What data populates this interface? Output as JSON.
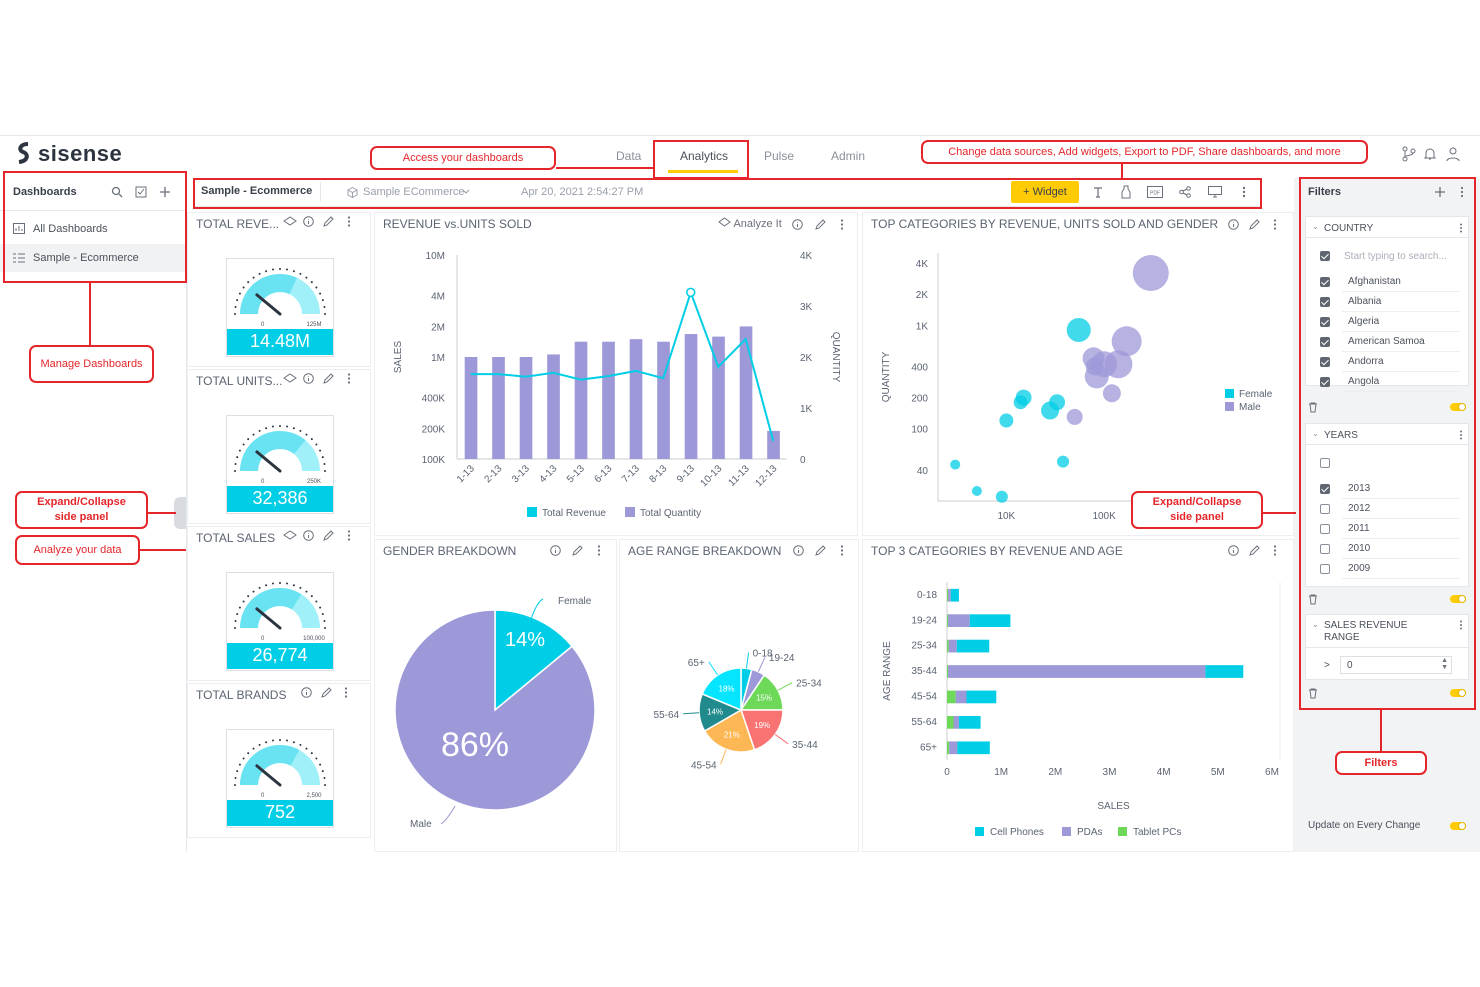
{
  "brand": {
    "name": "sisense",
    "accent": "#ffcb05",
    "kpi_color": "#00cee6",
    "annotation_color": "#e4262b"
  },
  "nav": {
    "tabs": [
      "Data",
      "Analytics",
      "Pulse",
      "Admin"
    ],
    "active": "Analytics"
  },
  "sidebar": {
    "title": "Dashboards",
    "items": [
      {
        "label": "All Dashboards",
        "icon": "dashboard-grid-icon"
      },
      {
        "label": "Sample - Ecommerce",
        "icon": "dashboard-list-icon",
        "selected": true
      }
    ]
  },
  "toolbar": {
    "dashboard_name": "Sample - Ecommerce",
    "datasource": "Sample ECommerce",
    "timestamp": "Apr 20, 2021 2:54:27 PM",
    "widget_button": "+ Widget"
  },
  "kpis": [
    {
      "title": "TOTAL REVE...",
      "value": "14.48M",
      "max_label": "125M",
      "min_label": "0",
      "level": 0.64
    },
    {
      "title": "TOTAL UNITS...",
      "value": "32,386",
      "max_label": "250K",
      "min_label": "0",
      "level": 0.72
    },
    {
      "title": "TOTAL SALES",
      "value": "26,774",
      "max_label": "100,000",
      "min_label": "0",
      "level": 0.68
    },
    {
      "title": "TOTAL BRANDS",
      "value": "752",
      "max_label": "2,500",
      "min_label": "0",
      "level": 0.66
    }
  ],
  "widgets": {
    "revenue_units": {
      "title": "REVENUE vs.UNITS SOLD",
      "analyze": "Analyze It"
    },
    "top_categories": {
      "title": "TOP CATEGORIES BY REVENUE, UNITS SOLD AND GENDER"
    },
    "gender": {
      "title": "GENDER BREAKDOWN"
    },
    "age": {
      "title": "AGE RANGE BREAKDOWN"
    },
    "top3": {
      "title": "TOP 3 CATEGORIES BY REVENUE AND AGE"
    }
  },
  "chart_data": [
    {
      "id": "revenue_units",
      "type": "bar",
      "categories": [
        "1-13",
        "2-13",
        "3-13",
        "4-13",
        "5-13",
        "6-13",
        "7-13",
        "8-13",
        "9-13",
        "10-13",
        "11-13",
        "12-13"
      ],
      "series": [
        {
          "name": "Total Quantity",
          "kind": "bar",
          "axis": "right",
          "color": "#9d98d8",
          "values": [
            2000,
            2000,
            2000,
            2050,
            2300,
            2300,
            2350,
            2300,
            2450,
            2400,
            2600,
            550
          ]
        },
        {
          "name": "Total Revenue",
          "kind": "line",
          "axis": "left",
          "color": "#00cee6",
          "values": [
            680000,
            680000,
            640000,
            700000,
            600000,
            650000,
            730000,
            620000,
            4300000,
            800000,
            1500000,
            150000
          ]
        }
      ],
      "ylabel": "SALES",
      "y2label": "QUANTITY",
      "y_ticks": [
        "10M",
        "4M",
        "2M",
        "1M",
        "400K",
        "200K",
        "100K"
      ],
      "y2_ticks": [
        "4K",
        "3K",
        "2K",
        "1K",
        "0"
      ],
      "ylim": [
        100000,
        10000000
      ],
      "y2lim": [
        0,
        4000
      ],
      "yscale": "log",
      "legend": "bottom"
    },
    {
      "id": "top_categories",
      "type": "scatter",
      "xlabel": "",
      "ylabel": "QUANTITY",
      "x_ticks": [
        "10K",
        "100K"
      ],
      "y_ticks": [
        "4K",
        "2K",
        "1K",
        "400",
        "200",
        "100",
        "40"
      ],
      "xscale": "log",
      "yscale": "log",
      "series": [
        {
          "name": "Female",
          "color": "#00cee6",
          "points": [
            [
              3000,
              45
            ],
            [
              5000,
              25
            ],
            [
              9000,
              22
            ],
            [
              10000,
              120
            ],
            [
              14000,
              180
            ],
            [
              15000,
              200
            ],
            [
              28000,
              150
            ],
            [
              33000,
              180
            ],
            [
              38000,
              48
            ],
            [
              55000,
              900
            ]
          ]
        },
        {
          "name": "Male",
          "color": "#9d98d8",
          "points": [
            [
              50000,
              130
            ],
            [
              78000,
              480
            ],
            [
              80000,
              400
            ],
            [
              84000,
              320
            ],
            [
              100000,
              420
            ],
            [
              140000,
              420
            ],
            [
              120000,
              220
            ],
            [
              170000,
              700
            ],
            [
              300000,
              3200
            ]
          ]
        }
      ],
      "legend": "right"
    },
    {
      "id": "gender",
      "type": "pie",
      "slices": [
        {
          "label": "Female",
          "value": 14,
          "text": "14%",
          "color": "#00cee6"
        },
        {
          "label": "Male",
          "value": 86,
          "text": "86%",
          "color": "#9d98d8"
        }
      ]
    },
    {
      "id": "age",
      "type": "pie",
      "slices": [
        {
          "label": "0-18",
          "value": 4,
          "color": "#00cee6"
        },
        {
          "label": "19-24",
          "value": 5,
          "color": "#9d98d8"
        },
        {
          "label": "25-34",
          "value": 15,
          "text": "15%",
          "color": "#6ed859"
        },
        {
          "label": "35-44",
          "value": 19,
          "text": "19%",
          "color": "#fa7373"
        },
        {
          "label": "45-54",
          "value": 21,
          "text": "21%",
          "color": "#fdb754"
        },
        {
          "label": "55-64",
          "value": 14,
          "text": "14%",
          "color": "#218a8c"
        },
        {
          "label": "65+",
          "value": 18,
          "text": "18%",
          "color": "#06e5ff"
        }
      ]
    },
    {
      "id": "top3",
      "type": "bar",
      "orientation": "horizontal",
      "categories": [
        "0-18",
        "19-24",
        "25-34",
        "35-44",
        "45-54",
        "55-64",
        "65+"
      ],
      "series": [
        {
          "name": "Cell Phones",
          "color": "#00cee6",
          "values": [
            150000,
            750000,
            600000,
            700000,
            550000,
            400000,
            600000
          ]
        },
        {
          "name": "PDAs",
          "color": "#9d98d8",
          "values": [
            50000,
            400000,
            150000,
            4750000,
            200000,
            100000,
            150000
          ]
        },
        {
          "name": "Tablet PCs",
          "color": "#6ed859",
          "values": [
            20000,
            20000,
            30000,
            20000,
            160000,
            120000,
            40000
          ]
        }
      ],
      "xlabel": "SALES",
      "ylabel": "AGE RANGE",
      "x_ticks": [
        "0",
        "1M",
        "2M",
        "3M",
        "4M",
        "5M",
        "6M"
      ],
      "xlim": [
        0,
        6000000
      ],
      "legend": "bottom"
    }
  ],
  "filters": {
    "title": "Filters",
    "country": {
      "title": "COUNTRY",
      "search_placeholder": "Start typing to search...",
      "items": [
        "Afghanistan",
        "Albania",
        "Algeria",
        "American Samoa",
        "Andorra",
        "Angola"
      ]
    },
    "years": {
      "title": "YEARS",
      "items": [
        {
          "label": "2013",
          "checked": true
        },
        {
          "label": "2012",
          "checked": false
        },
        {
          "label": "2011",
          "checked": false
        },
        {
          "label": "2010",
          "checked": false
        },
        {
          "label": "2009",
          "checked": false
        }
      ]
    },
    "sales_revenue": {
      "title_line1": "SALES REVENUE",
      "title_line2": "RANGE",
      "operator": ">",
      "value": "0"
    },
    "update_label": "Update on Every Change"
  },
  "annotations": {
    "access": "Access your dashboards",
    "change": "Change data sources, Add widgets, Export to PDF, Share dashboards, and more",
    "manage": "Manage Dashboards",
    "expand_left_1": "Expand/Collapse",
    "expand_left_2": "side panel",
    "analyze": "Analyze your data",
    "expand_right_1": "Expand/Collapse",
    "expand_right_2": "side panel",
    "filters": "Filters"
  }
}
